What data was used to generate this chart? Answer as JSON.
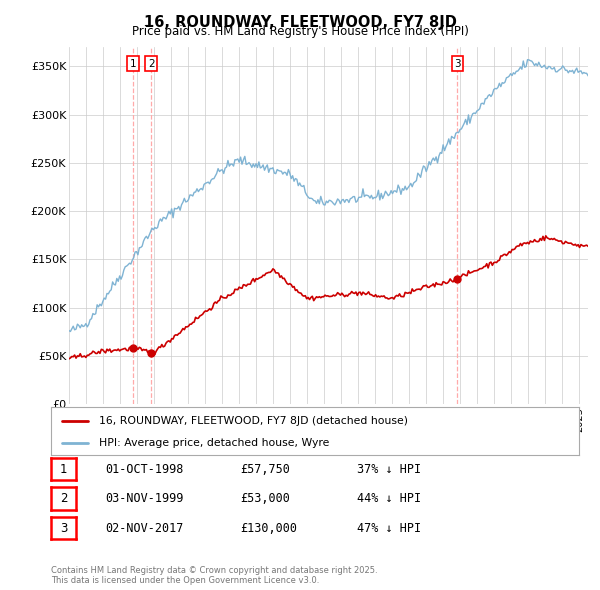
{
  "title": "16, ROUNDWAY, FLEETWOOD, FY7 8JD",
  "subtitle": "Price paid vs. HM Land Registry's House Price Index (HPI)",
  "ylabel_ticks": [
    "£0",
    "£50K",
    "£100K",
    "£150K",
    "£200K",
    "£250K",
    "£300K",
    "£350K"
  ],
  "ylim": [
    0,
    370000
  ],
  "xlim_start": 1995.0,
  "xlim_end": 2025.5,
  "sale_dates": [
    1998.75,
    1999.83,
    2017.83
  ],
  "sale_prices": [
    57750,
    53000,
    130000
  ],
  "sale_labels": [
    "1",
    "2",
    "3"
  ],
  "legend_red": "16, ROUNDWAY, FLEETWOOD, FY7 8JD (detached house)",
  "legend_blue": "HPI: Average price, detached house, Wyre",
  "table_entries": [
    {
      "num": "1",
      "date": "01-OCT-1998",
      "price": "£57,750",
      "pct": "37% ↓ HPI"
    },
    {
      "num": "2",
      "date": "03-NOV-1999",
      "price": "£53,000",
      "pct": "44% ↓ HPI"
    },
    {
      "num": "3",
      "date": "02-NOV-2017",
      "price": "£130,000",
      "pct": "47% ↓ HPI"
    }
  ],
  "footnote": "Contains HM Land Registry data © Crown copyright and database right 2025.\nThis data is licensed under the Open Government Licence v3.0.",
  "red_color": "#cc0000",
  "blue_color": "#7fb3d3",
  "vline_color": "#ffaaaa",
  "background_color": "#ffffff",
  "grid_color": "#cccccc"
}
